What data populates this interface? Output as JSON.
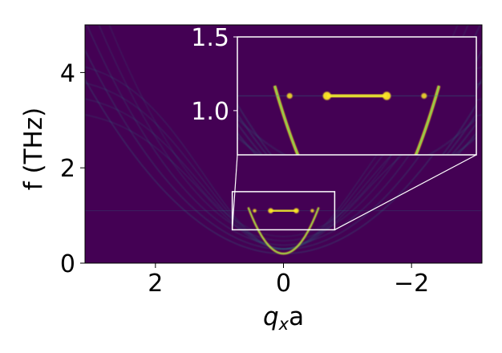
{
  "chart_data": {
    "type": "heatmap",
    "title": "",
    "xlabel_main": "q",
    "xlabel_sub": "x",
    "xlabel_tail": "a",
    "ylabel": "f (THz)",
    "xlim": [
      3.1,
      -3.1
    ],
    "ylim": [
      0,
      5
    ],
    "x_ticks": [
      {
        "value": 2,
        "label": "2"
      },
      {
        "value": 0,
        "label": "0"
      },
      {
        "value": -2,
        "label": "−2"
      }
    ],
    "y_ticks": [
      {
        "value": 0,
        "label": "0"
      },
      {
        "value": 2,
        "label": "2"
      },
      {
        "value": 4,
        "label": "4"
      }
    ],
    "grid": false,
    "colormap": "viridis",
    "colors": {
      "background": "#440154",
      "axis_line": "#000000",
      "inset_frame": "#ffffff",
      "bright": "#fde725",
      "mid": "#21918c"
    },
    "features": {
      "flat_band_freq": 1.1,
      "flat_band_half_width": 0.2,
      "lower_band_freq": 0.88,
      "parabola_min_freq": 0.2,
      "outer_mode_max_freq": 4.3
    },
    "inset": {
      "zoom_xlim": [
        0.8,
        -0.8
      ],
      "zoom_ylim": [
        0.7,
        1.5
      ],
      "y_ticks": [
        {
          "value": 1.0,
          "label": "1.0"
        },
        {
          "value": 1.5,
          "label": "1.5"
        }
      ]
    }
  }
}
